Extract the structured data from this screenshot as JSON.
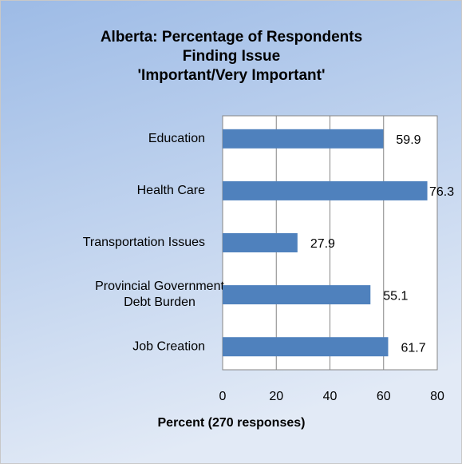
{
  "chart_data": {
    "type": "barh",
    "title": [
      "Alberta: Percentage of Respondents",
      "Finding Issue",
      "'Important/Very Important'"
    ],
    "categories": [
      "Education",
      "Health Care",
      "Transportation Issues",
      "Provincial Government Debt Burden",
      "Job Creation"
    ],
    "values": [
      59.9,
      76.3,
      27.9,
      55.1,
      61.7
    ],
    "color": "#4f81bd",
    "xlabel": "Percent (270 responses)",
    "xlim": [
      0,
      80
    ],
    "xticks": [
      0,
      20,
      40,
      60,
      80
    ],
    "grid": true
  }
}
